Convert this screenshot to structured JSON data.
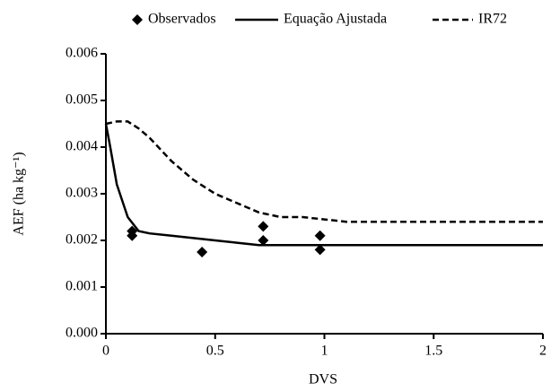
{
  "chart_data": {
    "type": "line",
    "x_label": "DVS",
    "y_label": "AEF (ha kg⁻¹)",
    "xlim": [
      0,
      2
    ],
    "xticks": [
      0,
      0.5,
      1,
      1.5,
      2
    ],
    "ylim": [
      0,
      0.006
    ],
    "yticks": [
      {
        "value": 0,
        "label": "0.000"
      },
      0.001,
      0.002,
      0.003,
      0.004,
      0.005,
      0.006
    ],
    "legend": "top",
    "series": [
      {
        "name": "Observados",
        "type": "scatter",
        "color": "#000000",
        "x": [
          0.12,
          0.12,
          0.44,
          0.72,
          0.72,
          0.98,
          0.98
        ],
        "values": [
          0.0022,
          0.0021,
          0.00175,
          0.0023,
          0.002,
          0.0021,
          0.0018
        ]
      },
      {
        "name": "Equação Ajustada",
        "type": "line",
        "style": "solid",
        "color": "#000000",
        "x": [
          0,
          0.02,
          0.05,
          0.1,
          0.15,
          0.2,
          0.3,
          0.4,
          0.5,
          0.6,
          0.7,
          0.8,
          1,
          2
        ],
        "values": [
          0.0045,
          0.004,
          0.0032,
          0.0025,
          0.0022,
          0.00215,
          0.0021,
          0.00205,
          0.002,
          0.00195,
          0.0019,
          0.0019,
          0.0019,
          0.0019
        ]
      },
      {
        "name": "IR72",
        "type": "line",
        "style": "dashed",
        "color": "#000000",
        "x": [
          0,
          0.05,
          0.1,
          0.15,
          0.2,
          0.3,
          0.4,
          0.5,
          0.6,
          0.7,
          0.8,
          0.9,
          1,
          1.1,
          2
        ],
        "values": [
          0.0045,
          0.00455,
          0.00455,
          0.0044,
          0.0042,
          0.0037,
          0.0033,
          0.003,
          0.0028,
          0.0026,
          0.0025,
          0.0025,
          0.00245,
          0.0024,
          0.0024
        ]
      }
    ]
  }
}
